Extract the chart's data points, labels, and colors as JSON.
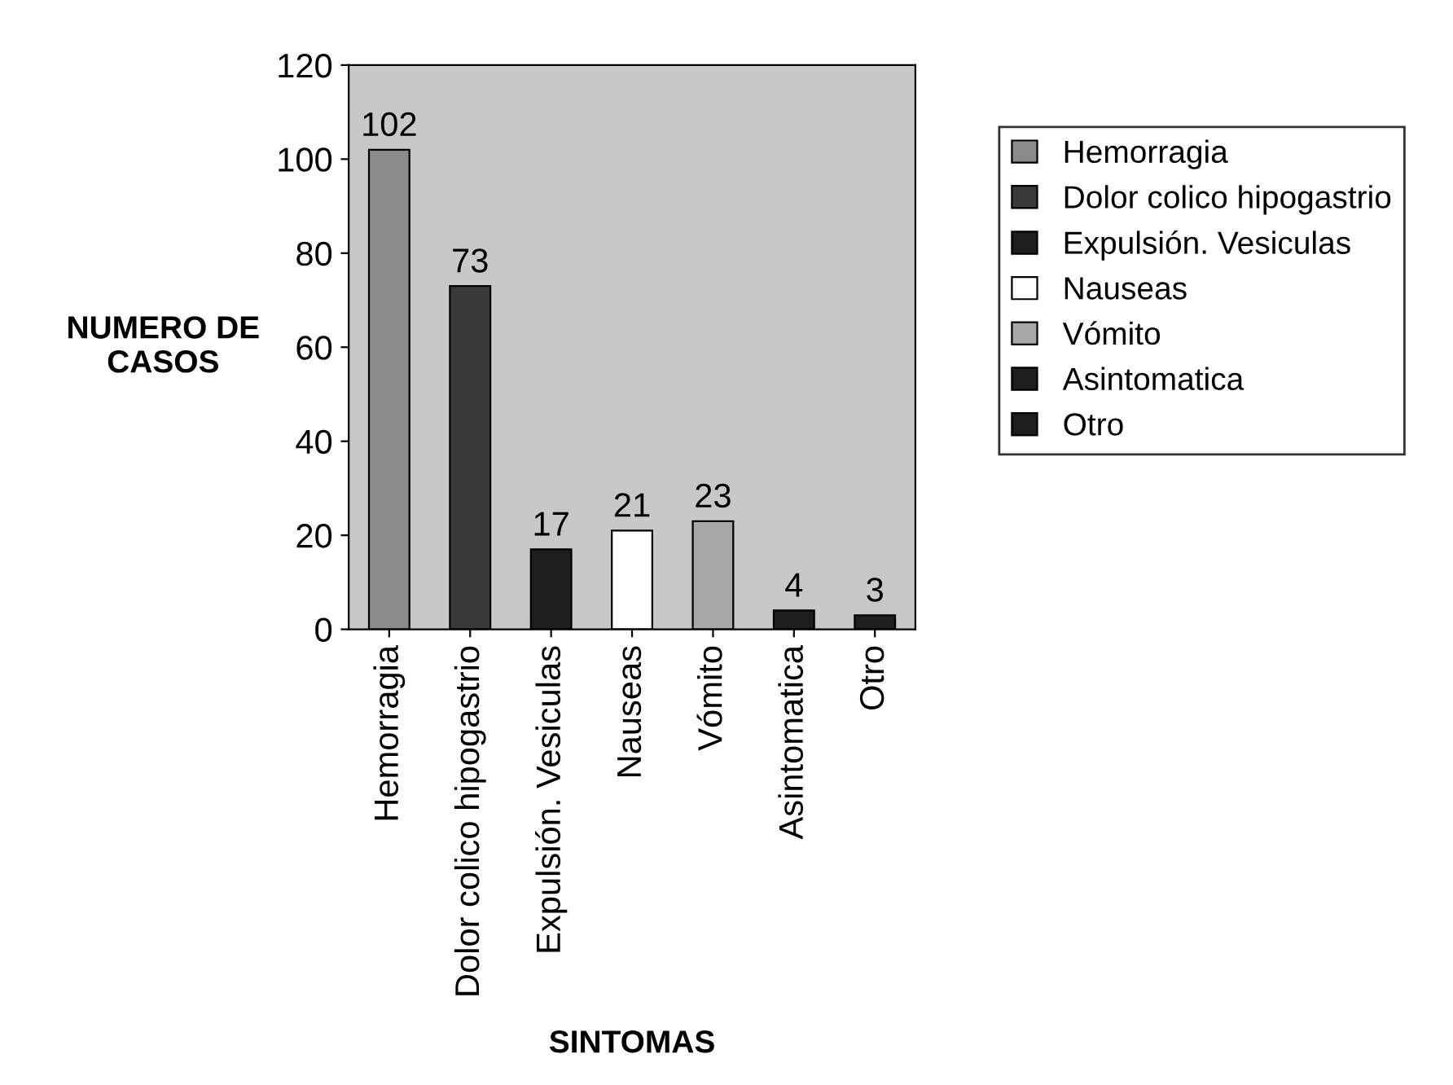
{
  "chart_data": {
    "type": "bar",
    "xlabel": "SINTOMAS",
    "ylabel": "NUMERO DE\nCASOS",
    "categories": [
      "Hemorragia",
      "Dolor colico hipogastrio",
      "Expulsión. Vesiculas",
      "Nauseas",
      "Vómito",
      "Asintomatica",
      "Otro"
    ],
    "series": [
      {
        "name": "Hemorragia",
        "color": "#8a8a8a",
        "values": [
          102,
          null,
          null,
          null,
          null,
          null,
          null
        ]
      },
      {
        "name": "Dolor colico hipogastrio",
        "color": "#3a3a3a",
        "values": [
          null,
          73,
          null,
          null,
          null,
          null,
          null
        ]
      },
      {
        "name": "Expulsión. Vesiculas",
        "color": "#1e1e1e",
        "values": [
          null,
          null,
          17,
          null,
          null,
          null,
          null
        ]
      },
      {
        "name": "Nauseas",
        "color": "#ffffff",
        "values": [
          null,
          null,
          null,
          21,
          null,
          null,
          null
        ]
      },
      {
        "name": "Vómito",
        "color": "#a8a8a8",
        "values": [
          null,
          null,
          null,
          null,
          23,
          null,
          null
        ]
      },
      {
        "name": "Asintomatica",
        "color": "#1e1e1e",
        "values": [
          null,
          null,
          null,
          null,
          null,
          4,
          null
        ]
      },
      {
        "name": "Otro",
        "color": "#1e1e1e",
        "values": [
          null,
          null,
          null,
          null,
          null,
          null,
          3
        ]
      }
    ],
    "ylim": [
      0,
      120
    ],
    "yticks": [
      0,
      20,
      40,
      60,
      80,
      100,
      120
    ],
    "data_labels": true,
    "grid": false,
    "legend": "right"
  }
}
